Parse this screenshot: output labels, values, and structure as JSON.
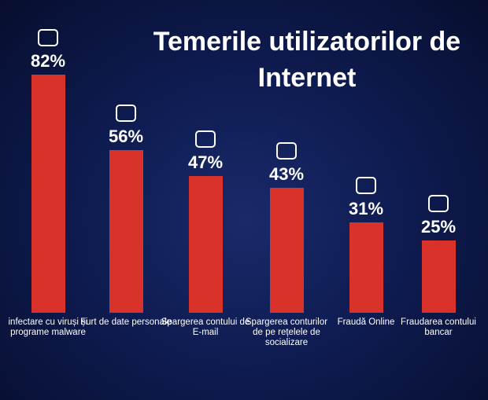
{
  "chart_data": {
    "type": "bar",
    "title": "Temerile utilizatorilor de Internet",
    "categories": [
      "infectare cu viruși și programe malware",
      "Furt de date personale",
      "Spargerea contului de E-mail",
      "Spargerea conturilor de pe rețelele de socializare",
      "Fraudă Online",
      "Fraudarea contului bancar"
    ],
    "values": [
      82,
      56,
      47,
      43,
      31,
      25
    ],
    "value_labels": [
      "82%",
      "56%",
      "47%",
      "43%",
      "31%",
      "25%"
    ],
    "color": "#d8322b"
  }
}
